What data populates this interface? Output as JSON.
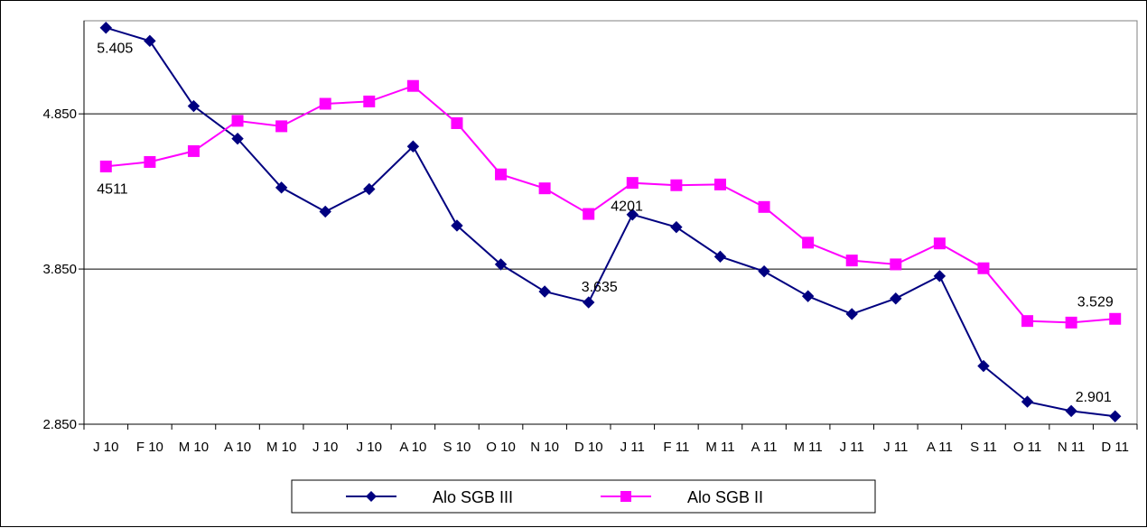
{
  "chart_data": {
    "type": "line",
    "categories": [
      "J 10",
      "F 10",
      "M 10",
      "A 10",
      "M 10",
      "J 10",
      "J 10",
      "A 10",
      "S 10",
      "O 10",
      "N 10",
      "D 10",
      "J 11",
      "F 11",
      "M 11",
      "A 11",
      "M 11",
      "J 11",
      "J 11",
      "A 11",
      "S 11",
      "O 11",
      "N 11",
      "D 11"
    ],
    "series": [
      {
        "name": "Alo SGB III",
        "color": "#000080",
        "marker": "diamond",
        "values": [
          5405,
          5320,
          4900,
          4690,
          4375,
          4220,
          4365,
          4640,
          4130,
          3880,
          3705,
          3635,
          4201,
          4120,
          3930,
          3835,
          3675,
          3560,
          3660,
          3805,
          3225,
          2995,
          2935,
          2901
        ]
      },
      {
        "name": "Alo SGB II",
        "color": "#FF00FF",
        "marker": "square",
        "values": [
          4511,
          4540,
          4610,
          4805,
          4770,
          4915,
          4930,
          5030,
          4790,
          4460,
          4370,
          4205,
          4405,
          4390,
          4395,
          4250,
          4020,
          3905,
          3880,
          4015,
          3855,
          3515,
          3505,
          3529
        ]
      }
    ],
    "yticks": [
      "2.850",
      "3.850",
      "4.850"
    ],
    "ytick_values": [
      2850,
      3850,
      4850
    ],
    "ylim": [
      2850,
      5450
    ],
    "grid": "horizontal",
    "legend": "bottom",
    "annotations": [
      {
        "text": "5.405",
        "series": 0,
        "index": 0
      },
      {
        "text": "4511",
        "series": 1,
        "index": 0
      },
      {
        "text": "3.635",
        "series": 0,
        "index": 11
      },
      {
        "text": "4201",
        "series": 0,
        "index": 12
      },
      {
        "text": "3.529",
        "series": 1,
        "index": 23
      },
      {
        "text": "2.901",
        "series": 0,
        "index": 23
      }
    ]
  }
}
